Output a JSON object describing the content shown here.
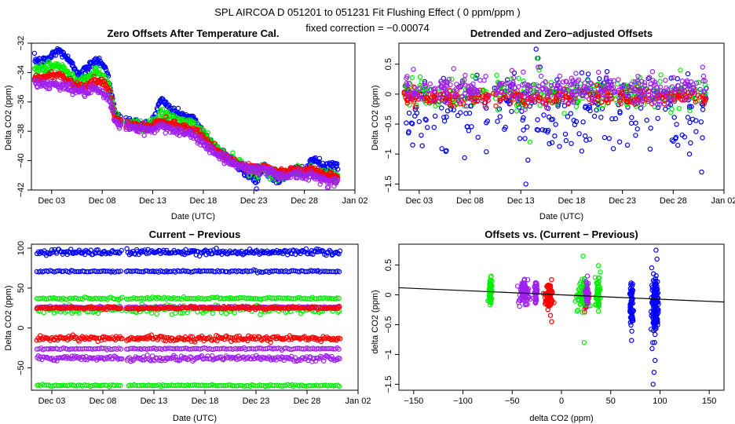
{
  "figure": {
    "title_line1": "SPL   AIRCOA D   051201 to 051231   Fit Flushing Effect ( 0 ppm/ppm )",
    "title_line2": "fixed correction = −0.00074"
  },
  "colors": {
    "blue": "#0000ff",
    "green": "#00ee00",
    "red": "#ff0000",
    "purple": "#a020f0",
    "line": "#000000"
  },
  "chart_data": [
    {
      "id": "zero",
      "type": "scatter",
      "title": "Zero Offsets After Temperature Cal.",
      "xlabel": "Date (UTC)",
      "ylabel": "Delta CO2 (ppm)",
      "xlim": [
        0,
        32
      ],
      "ylim": [
        -42,
        -32
      ],
      "xticks": [
        2,
        7,
        12,
        17,
        22,
        27,
        32
      ],
      "xticklabels": [
        "Dec 03",
        "Dec 08",
        "Dec 13",
        "Dec 18",
        "Dec 23",
        "Dec 28",
        "Jan 02"
      ],
      "yticks": [
        -42,
        -40,
        -38,
        -36,
        -34,
        -32
      ],
      "yticklabels": [
        "−42",
        "−40",
        "−38",
        "−36",
        "−34",
        "−32"
      ],
      "series": [
        {
          "name": "blue",
          "color": "blue",
          "noise": 0.15,
          "x": [
            0.3,
            1,
            1.8,
            2.5,
            3.2,
            4,
            4.8,
            5.6,
            6.3,
            7,
            7.6,
            7.8,
            8.3,
            9,
            10,
            11,
            11.6,
            12,
            12.8,
            13.5,
            14.2,
            15,
            16,
            16.7,
            17.5,
            18.5,
            19.5,
            20.5,
            21.5,
            22.3,
            23,
            23.8,
            24.5,
            25.3,
            26,
            26.5,
            27.2,
            27.8,
            28.5,
            29,
            29.5,
            30.3
          ],
          "y": [
            -33.1,
            -33.3,
            -33.0,
            -32.5,
            -32.7,
            -33.5,
            -34.1,
            -33.7,
            -33.1,
            -33.3,
            -34.2,
            -34.9,
            -36.9,
            -37.2,
            -37.4,
            -37.5,
            -37.6,
            -37.3,
            -35.8,
            -36.3,
            -36.7,
            -36.9,
            -37.2,
            -37.7,
            -38.6,
            -39.3,
            -39.8,
            -40.4,
            -41.0,
            -41.3,
            -40.3,
            -41.1,
            -41.4,
            -40.9,
            -40.7,
            -40.5,
            -40.9,
            -39.8,
            -40.2,
            -40.5,
            -40.4,
            -40.3
          ]
        },
        {
          "name": "green",
          "color": "green",
          "noise": 0.18,
          "x": [
            0.3,
            1,
            1.8,
            2.5,
            3.2,
            4,
            4.8,
            5.6,
            6.3,
            7,
            7.6,
            7.8,
            8.3,
            9,
            10,
            11,
            11.6,
            12,
            12.8,
            13.5,
            14.2,
            15,
            16,
            16.7,
            17.5,
            18.5,
            19.5,
            20.5,
            21.5,
            22.3,
            23,
            23.8,
            24.5,
            25.3,
            26,
            26.5,
            27.2,
            27.8,
            28.5,
            29,
            29.5,
            30.3
          ],
          "y": [
            -33.8,
            -33.9,
            -33.6,
            -33.5,
            -33.8,
            -34.2,
            -34.6,
            -34.3,
            -34.0,
            -34.2,
            -34.7,
            -35.3,
            -37.0,
            -37.3,
            -37.5,
            -37.6,
            -37.6,
            -37.4,
            -36.9,
            -37.0,
            -37.2,
            -37.4,
            -37.6,
            -37.9,
            -38.6,
            -39.3,
            -39.8,
            -40.2,
            -40.6,
            -40.8,
            -40.5,
            -40.9,
            -41.0,
            -40.8,
            -40.7,
            -40.7,
            -40.8,
            -40.6,
            -40.8,
            -41.0,
            -41.0,
            -41.1
          ]
        },
        {
          "name": "red",
          "color": "red",
          "noise": 0.12,
          "x": [
            0.3,
            1,
            1.8,
            2.5,
            3.2,
            4,
            4.8,
            5.6,
            6.3,
            7,
            7.6,
            7.8,
            8.3,
            9,
            10,
            11,
            11.6,
            12,
            12.8,
            13.5,
            14.2,
            15,
            16,
            16.7,
            17.5,
            18.5,
            19.5,
            20.5,
            21.5,
            22.3,
            23,
            23.8,
            24.5,
            25.3,
            26,
            26.5,
            27.2,
            27.8,
            28.5,
            29,
            29.5,
            30.3
          ],
          "y": [
            -34.3,
            -34.4,
            -34.2,
            -34.1,
            -34.3,
            -34.7,
            -35.0,
            -34.8,
            -34.6,
            -34.7,
            -35.1,
            -35.6,
            -37.1,
            -37.4,
            -37.6,
            -37.7,
            -37.7,
            -37.6,
            -37.3,
            -37.4,
            -37.5,
            -37.7,
            -37.9,
            -38.2,
            -38.8,
            -39.4,
            -39.9,
            -40.2,
            -40.5,
            -40.6,
            -40.4,
            -40.7,
            -40.8,
            -40.7,
            -40.6,
            -40.6,
            -40.7,
            -40.6,
            -40.8,
            -41.0,
            -41.0,
            -41.1
          ]
        },
        {
          "name": "purple",
          "color": "purple",
          "noise": 0.15,
          "x": [
            0.3,
            1,
            1.8,
            2.5,
            3.2,
            4,
            4.8,
            5.6,
            6.3,
            7,
            7.6,
            7.8,
            8.3,
            9,
            10,
            11,
            11.6,
            12,
            12.8,
            13.5,
            14.2,
            15,
            16,
            16.7,
            17.5,
            18.5,
            19.5,
            20.5,
            21.5,
            22.3,
            23,
            23.8,
            24.5,
            25.3,
            26,
            26.5,
            27.2,
            27.8,
            28.5,
            29,
            29.5,
            30.3
          ],
          "y": [
            -34.6,
            -34.8,
            -34.8,
            -34.8,
            -34.9,
            -35.1,
            -35.3,
            -35.3,
            -35.2,
            -35.4,
            -35.8,
            -36.1,
            -37.3,
            -37.6,
            -37.8,
            -37.9,
            -37.9,
            -37.9,
            -37.6,
            -37.8,
            -37.9,
            -38.1,
            -38.3,
            -38.6,
            -39.1,
            -39.6,
            -40.0,
            -40.3,
            -40.5,
            -40.6,
            -40.6,
            -40.8,
            -41.0,
            -41.0,
            -40.9,
            -40.9,
            -41.1,
            -41.0,
            -41.2,
            -41.3,
            -41.4,
            -41.5
          ]
        }
      ]
    },
    {
      "id": "detrended",
      "type": "scatter",
      "title": "Detrended and Zero−adjusted Offsets",
      "xlabel": "Date (UTC)",
      "ylabel": "Delta CO2 (ppm)",
      "xlim": [
        0,
        32
      ],
      "ylim": [
        -1.6,
        0.85
      ],
      "xticks": [
        2,
        7,
        12,
        17,
        22,
        27,
        32
      ],
      "xticklabels": [
        "Dec 03",
        "Dec 08",
        "Dec 13",
        "Dec 18",
        "Dec 23",
        "Dec 28",
        "Jan 02"
      ],
      "yticks": [
        -1.5,
        -1.0,
        -0.5,
        0.0,
        0.5
      ],
      "yticklabels": [
        "−1.5",
        "−1",
        "−0.5",
        "0",
        "0.5"
      ],
      "series": [
        {
          "name": "blue",
          "color": "blue",
          "mean": -0.1,
          "sd": 0.22,
          "n": 300
        },
        {
          "name": "green",
          "color": "green",
          "mean": 0.0,
          "sd": 0.12,
          "n": 280
        },
        {
          "name": "red",
          "color": "red",
          "mean": -0.05,
          "sd": 0.07,
          "n": 300
        },
        {
          "name": "purple",
          "color": "purple",
          "mean": 0.08,
          "sd": 0.12,
          "n": 320
        }
      ],
      "extra_points": [
        {
          "color": "blue",
          "x": [
            12.5,
            12.7,
            13.5,
            13.7,
            13.9,
            29.8,
            18,
            22.5,
            28.6
          ],
          "y": [
            -1.5,
            -1.1,
            0.75,
            0.6,
            0.45,
            -1.3,
            -0.95,
            -0.85,
            -1.0
          ]
        },
        {
          "color": "green",
          "x": [
            13.6,
            13.8,
            12.9,
            27.7
          ],
          "y": [
            0.6,
            0.4,
            -0.8,
            0.4
          ]
        },
        {
          "color": "purple",
          "x": [
            13.7,
            14.0,
            29.9
          ],
          "y": [
            0.45,
            0.3,
            0.45
          ]
        }
      ]
    },
    {
      "id": "current",
      "type": "scatter",
      "title": "Current − Previous",
      "xlabel": "Date (UTC)",
      "ylabel": "Delta CO2 (ppm)",
      "xlim": [
        0,
        32
      ],
      "ylim": [
        -78,
        105
      ],
      "xticks": [
        2,
        7,
        12,
        17,
        22,
        27,
        32
      ],
      "xticklabels": [
        "Dec 03",
        "Dec 08",
        "Dec 13",
        "Dec 18",
        "Dec 23",
        "Dec 28",
        "Jan 02"
      ],
      "yticks": [
        -50,
        0,
        50,
        100
      ],
      "yticklabels": [
        "−50",
        "0",
        "50",
        "100"
      ],
      "series": [
        {
          "name": "blue-high",
          "color": "blue",
          "mean": 95,
          "sd": 1.8,
          "n": 260
        },
        {
          "name": "blue-mid",
          "color": "blue",
          "mean": 71,
          "sd": 0.6,
          "n": 160
        },
        {
          "name": "green-high",
          "color": "green",
          "mean": 37,
          "sd": 0.7,
          "n": 160
        },
        {
          "name": "green-low",
          "color": "green",
          "mean": 23,
          "sd": 2.5,
          "n": 180
        },
        {
          "name": "purple-high",
          "color": "purple",
          "mean": 26,
          "sd": 0.6,
          "n": 160
        },
        {
          "name": "red-high",
          "color": "red",
          "mean": 25,
          "sd": 0.8,
          "n": 220
        },
        {
          "name": "red-low",
          "color": "red",
          "mean": -13,
          "sd": 1.5,
          "n": 260
        },
        {
          "name": "purple-mid",
          "color": "purple",
          "mean": -26,
          "sd": 0.5,
          "n": 160
        },
        {
          "name": "purple-low",
          "color": "purple",
          "mean": -38,
          "sd": 1.5,
          "n": 240
        },
        {
          "name": "green-bottom",
          "color": "green",
          "mean": -72,
          "sd": 0.5,
          "n": 160
        }
      ]
    },
    {
      "id": "offsets",
      "type": "scatter",
      "title": "Offsets vs. (Current − Previous)",
      "xlabel": "delta CO2 (ppm)",
      "ylabel": "delta CO2 (ppm)",
      "xlim": [
        -165,
        165
      ],
      "ylim": [
        -1.6,
        0.85
      ],
      "xticks": [
        -150,
        -100,
        -50,
        0,
        50,
        100,
        150
      ],
      "xticklabels": [
        "−150",
        "−100",
        "−50",
        "0",
        "50",
        "100",
        "150"
      ],
      "yticks": [
        -1.5,
        -1.0,
        -0.5,
        0.0,
        0.5
      ],
      "yticklabels": [
        "−1.5",
        "−1",
        "−0.5",
        "0",
        "0.5"
      ],
      "fit_line": {
        "x": [
          -165,
          165
        ],
        "y": [
          0.12,
          -0.12
        ]
      },
      "clusters": [
        {
          "color": "green",
          "x": -72,
          "xsd": 0.8,
          "y": 0.05,
          "ysd": 0.1,
          "n": 70
        },
        {
          "color": "purple",
          "x": -38,
          "xsd": 2.5,
          "y": 0.05,
          "ysd": 0.1,
          "n": 90
        },
        {
          "color": "purple",
          "x": -26,
          "xsd": 0.8,
          "y": 0.05,
          "ysd": 0.08,
          "n": 50
        },
        {
          "color": "red",
          "x": -13,
          "xsd": 2.0,
          "y": -0.02,
          "ysd": 0.09,
          "n": 90
        },
        {
          "color": "red",
          "x": 25,
          "xsd": 1.2,
          "y": -0.05,
          "ysd": 0.09,
          "n": 70
        },
        {
          "color": "green",
          "x": 21,
          "xsd": 3.0,
          "y": 0.0,
          "ysd": 0.13,
          "n": 80
        },
        {
          "color": "purple",
          "x": 26,
          "xsd": 0.8,
          "y": 0.02,
          "ysd": 0.1,
          "n": 40
        },
        {
          "color": "green",
          "x": 37,
          "xsd": 1.0,
          "y": 0.0,
          "ysd": 0.15,
          "n": 60
        },
        {
          "color": "blue",
          "x": 71,
          "xsd": 0.8,
          "y": -0.15,
          "ysd": 0.2,
          "n": 60
        },
        {
          "color": "blue",
          "x": 95,
          "xsd": 1.8,
          "y": -0.15,
          "ysd": 0.25,
          "n": 150
        }
      ],
      "extra_points": [
        {
          "color": "blue",
          "x": [
            93,
            94,
            95,
            96,
            97,
            92
          ],
          "y": [
            -1.5,
            -1.3,
            -1.1,
            0.75,
            0.6,
            -0.9
          ]
        },
        {
          "color": "green",
          "x": [
            23,
            22
          ],
          "y": [
            -0.8,
            0.65
          ]
        },
        {
          "color": "red",
          "x": [
            -10
          ],
          "y": [
            -0.45
          ]
        }
      ]
    }
  ]
}
